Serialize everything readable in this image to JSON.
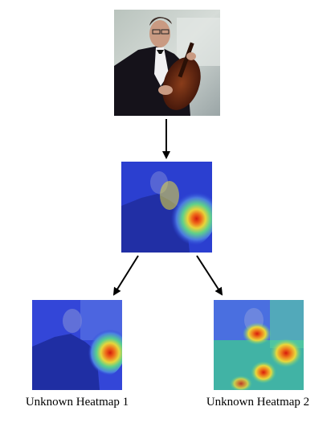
{
  "diagram": {
    "nodes": [
      {
        "id": "input-photo",
        "kind": "photo",
        "subject": "man in tuxedo holding cello",
        "caption": ""
      },
      {
        "id": "base-heatmap",
        "kind": "heatmap-overlay",
        "colormap": "jet",
        "caption": ""
      },
      {
        "id": "heatmap-1",
        "kind": "heatmap-overlay",
        "colormap": "jet",
        "caption": "Unknown Heatmap 1"
      },
      {
        "id": "heatmap-2",
        "kind": "heatmap-overlay",
        "colormap": "jet",
        "caption": "Unknown Heatmap 2"
      }
    ],
    "edges": [
      {
        "from": "input-photo",
        "to": "base-heatmap"
      },
      {
        "from": "base-heatmap",
        "to": "heatmap-1"
      },
      {
        "from": "base-heatmap",
        "to": "heatmap-2"
      }
    ]
  },
  "colors": {
    "arrow": "#000000",
    "heat_low": "#2a3fd6",
    "heat_mid": "#3fd7a0",
    "heat_high": "#e02010"
  }
}
